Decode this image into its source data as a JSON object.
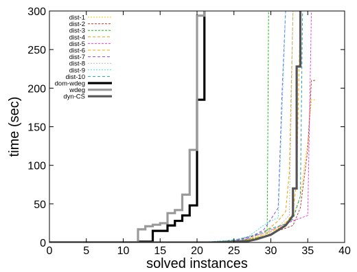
{
  "chart_data": {
    "type": "line",
    "xlabel": "solved instances",
    "ylabel": "time (sec)",
    "xlim": [
      0,
      40
    ],
    "ylim": [
      0,
      300
    ],
    "xticks": [
      0,
      5,
      10,
      15,
      20,
      25,
      30,
      35,
      40
    ],
    "yticks": [
      0,
      50,
      100,
      150,
      200,
      250,
      300
    ],
    "grid": false,
    "legend_position": "top-left",
    "series": [
      {
        "name": "dist-1",
        "color": "#f5c400",
        "dash": "2,2",
        "width": 1,
        "points": [
          [
            0,
            0
          ],
          [
            20,
            0
          ],
          [
            25,
            1
          ],
          [
            27,
            4
          ],
          [
            29,
            10
          ],
          [
            31,
            18
          ],
          [
            32,
            26
          ],
          [
            33,
            34
          ],
          [
            34,
            60
          ],
          [
            35,
            130
          ],
          [
            35.5,
            185
          ],
          [
            36,
            185
          ]
        ]
      },
      {
        "name": "dist-2",
        "color": "#c0392b",
        "dash": "3,2",
        "width": 1,
        "points": [
          [
            0,
            0
          ],
          [
            20,
            0
          ],
          [
            25,
            1
          ],
          [
            27,
            3
          ],
          [
            29,
            8
          ],
          [
            31,
            15
          ],
          [
            33,
            22
          ],
          [
            34,
            45
          ],
          [
            35,
            120
          ],
          [
            35.5,
            210
          ],
          [
            36,
            210
          ]
        ]
      },
      {
        "name": "dist-3",
        "color": "#1db31d",
        "dash": "3,2",
        "width": 1,
        "points": [
          [
            0,
            0
          ],
          [
            20,
            0
          ],
          [
            24,
            1
          ],
          [
            26,
            3
          ],
          [
            28,
            6
          ],
          [
            29.5,
            9
          ],
          [
            29.7,
            300
          ]
        ]
      },
      {
        "name": "dist-4",
        "color": "#e6a000",
        "dash": "4,3",
        "width": 1,
        "points": [
          [
            0,
            0
          ],
          [
            20,
            0
          ],
          [
            25,
            2
          ],
          [
            27,
            6
          ],
          [
            29,
            12
          ],
          [
            30,
            20
          ],
          [
            31,
            28
          ],
          [
            32,
            40
          ],
          [
            32.5,
            90
          ],
          [
            33,
            300
          ]
        ]
      },
      {
        "name": "dist-5",
        "color": "#e040e0",
        "dash": "3,2",
        "width": 1,
        "points": [
          [
            0,
            0
          ],
          [
            20,
            0
          ],
          [
            25,
            2
          ],
          [
            27,
            7
          ],
          [
            29,
            12
          ],
          [
            31,
            20
          ],
          [
            33,
            28
          ],
          [
            35,
            35
          ],
          [
            35.5,
            300
          ]
        ]
      },
      {
        "name": "dist-6",
        "color": "#ffa500",
        "dash": "4,3",
        "width": 1,
        "points": [
          [
            0,
            0
          ],
          [
            20,
            0
          ],
          [
            26,
            2
          ],
          [
            28,
            6
          ],
          [
            30,
            14
          ],
          [
            32,
            25
          ],
          [
            33,
            38
          ],
          [
            33.5,
            80
          ],
          [
            34,
            300
          ]
        ]
      },
      {
        "name": "dist-7",
        "color": "#8a3ff2",
        "dash": "4,3",
        "width": 1,
        "points": [
          [
            0,
            0
          ],
          [
            20,
            0
          ],
          [
            25,
            2
          ],
          [
            27,
            6
          ],
          [
            29,
            16
          ],
          [
            30,
            30
          ],
          [
            31,
            45
          ],
          [
            31.5,
            190
          ],
          [
            32,
            300
          ]
        ]
      },
      {
        "name": "dist-8",
        "color": "#b8b8b8",
        "dash": "2,2",
        "width": 1,
        "points": [
          [
            0,
            0
          ],
          [
            20,
            0
          ],
          [
            25,
            2
          ],
          [
            27,
            5
          ],
          [
            29,
            12
          ],
          [
            31,
            20
          ],
          [
            32.5,
            35
          ],
          [
            33,
            300
          ]
        ]
      },
      {
        "name": "dist-9",
        "color": "#40e0d0",
        "dash": "2,2",
        "width": 1,
        "points": [
          [
            0,
            0
          ],
          [
            20,
            0
          ],
          [
            25,
            3
          ],
          [
            27,
            8
          ],
          [
            28,
            15
          ],
          [
            29,
            22
          ],
          [
            30,
            28
          ],
          [
            31,
            32
          ],
          [
            32,
            300
          ]
        ]
      },
      {
        "name": "dist-10",
        "color": "#20a090",
        "dash": "4,3",
        "width": 1,
        "points": [
          [
            0,
            0
          ],
          [
            20,
            0
          ],
          [
            24,
            2
          ],
          [
            26,
            5
          ],
          [
            28,
            10
          ],
          [
            30,
            18
          ],
          [
            32,
            24
          ],
          [
            33,
            30
          ],
          [
            34,
            60
          ],
          [
            34.3,
            300
          ]
        ]
      },
      {
        "name": "dom-wdeg",
        "color": "#000000",
        "dash": "",
        "width": 3.2,
        "points": [
          [
            0,
            0
          ],
          [
            12,
            0
          ],
          [
            12,
            1
          ],
          [
            14,
            1
          ],
          [
            14,
            15
          ],
          [
            16,
            15
          ],
          [
            16,
            22
          ],
          [
            17,
            22
          ],
          [
            17,
            28
          ],
          [
            18,
            28
          ],
          [
            18,
            35
          ],
          [
            19,
            35
          ],
          [
            19,
            48
          ],
          [
            20,
            48
          ],
          [
            20,
            185
          ],
          [
            21,
            185
          ],
          [
            21,
            300
          ]
        ]
      },
      {
        "name": "wdeg",
        "color": "#9a9a9a",
        "dash": "",
        "width": 3.2,
        "points": [
          [
            0,
            0
          ],
          [
            12,
            0
          ],
          [
            12,
            17
          ],
          [
            13,
            17
          ],
          [
            13,
            21
          ],
          [
            14,
            21
          ],
          [
            14,
            23
          ],
          [
            15,
            23
          ],
          [
            15,
            25
          ],
          [
            16,
            25
          ],
          [
            16,
            38
          ],
          [
            17,
            38
          ],
          [
            17,
            42
          ],
          [
            18,
            42
          ],
          [
            18,
            62
          ],
          [
            19,
            62
          ],
          [
            19,
            120
          ],
          [
            20,
            120
          ],
          [
            20,
            294
          ],
          [
            21,
            294
          ],
          [
            21,
            300
          ]
        ]
      },
      {
        "name": "dyn-CS",
        "color": "#555555",
        "dash": "",
        "width": 3.2,
        "points": [
          [
            0,
            0
          ],
          [
            22,
            0
          ],
          [
            25,
            1
          ],
          [
            27,
            2
          ],
          [
            28,
            4
          ],
          [
            29,
            7
          ],
          [
            30,
            10
          ],
          [
            31,
            16
          ],
          [
            32,
            22
          ],
          [
            32.5,
            28
          ],
          [
            33,
            35
          ],
          [
            33,
            70
          ],
          [
            33.5,
            70
          ],
          [
            33.5,
            228
          ],
          [
            34,
            228
          ],
          [
            34,
            300
          ]
        ]
      }
    ]
  }
}
